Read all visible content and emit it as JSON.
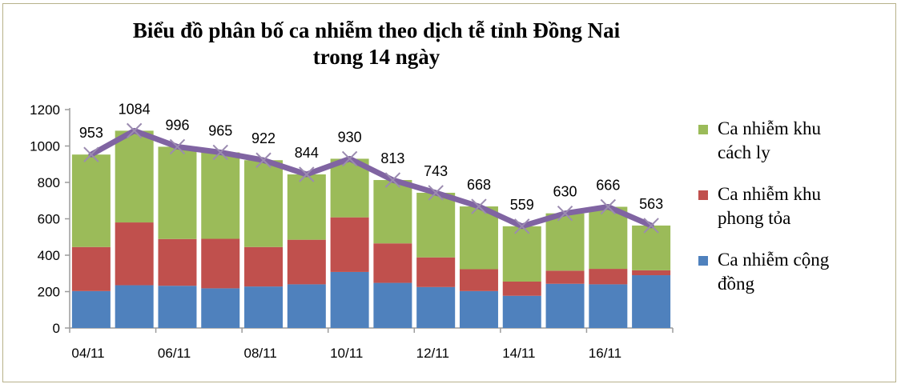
{
  "chart_data": {
    "type": "bar",
    "stacked": true,
    "title_lines": [
      "Biểu đồ phân bố ca nhiễm theo dịch tễ tỉnh Đồng Nai",
      "trong 14 ngày"
    ],
    "x_tick_labels": [
      "04/11",
      "06/11",
      "08/11",
      "10/11",
      "12/11",
      "14/11",
      "16/11"
    ],
    "ylim": [
      0,
      1200
    ],
    "yticks": [
      0,
      200,
      400,
      600,
      800,
      1000,
      1200
    ],
    "series": [
      {
        "name": "Ca nhiễm cộng đồng",
        "legend_lines": [
          "Ca nhiễm cộng",
          "đồng"
        ],
        "color": "#4f81bd",
        "values": [
          203,
          235,
          232,
          218,
          228,
          240,
          308,
          248,
          225,
          203,
          177,
          243,
          240,
          290
        ]
      },
      {
        "name": "Ca nhiễm khu phong tỏa",
        "legend_lines": [
          "Ca nhiễm khu",
          "phong tỏa"
        ],
        "color": "#c0504d",
        "values": [
          242,
          345,
          257,
          272,
          217,
          245,
          300,
          217,
          163,
          120,
          78,
          72,
          85,
          27
        ]
      },
      {
        "name": "Ca nhiễm khu cách ly",
        "legend_lines": [
          "Ca nhiễm khu",
          "cách ly"
        ],
        "color": "#9bbb59",
        "values": [
          508,
          504,
          507,
          475,
          477,
          359,
          322,
          348,
          355,
          345,
          304,
          315,
          341,
          246
        ]
      }
    ],
    "total": {
      "color": "#8064a2",
      "values": [
        953,
        1084,
        996,
        965,
        922,
        844,
        930,
        813,
        743,
        668,
        559,
        630,
        666,
        563
      ]
    },
    "legend_position": "right"
  }
}
